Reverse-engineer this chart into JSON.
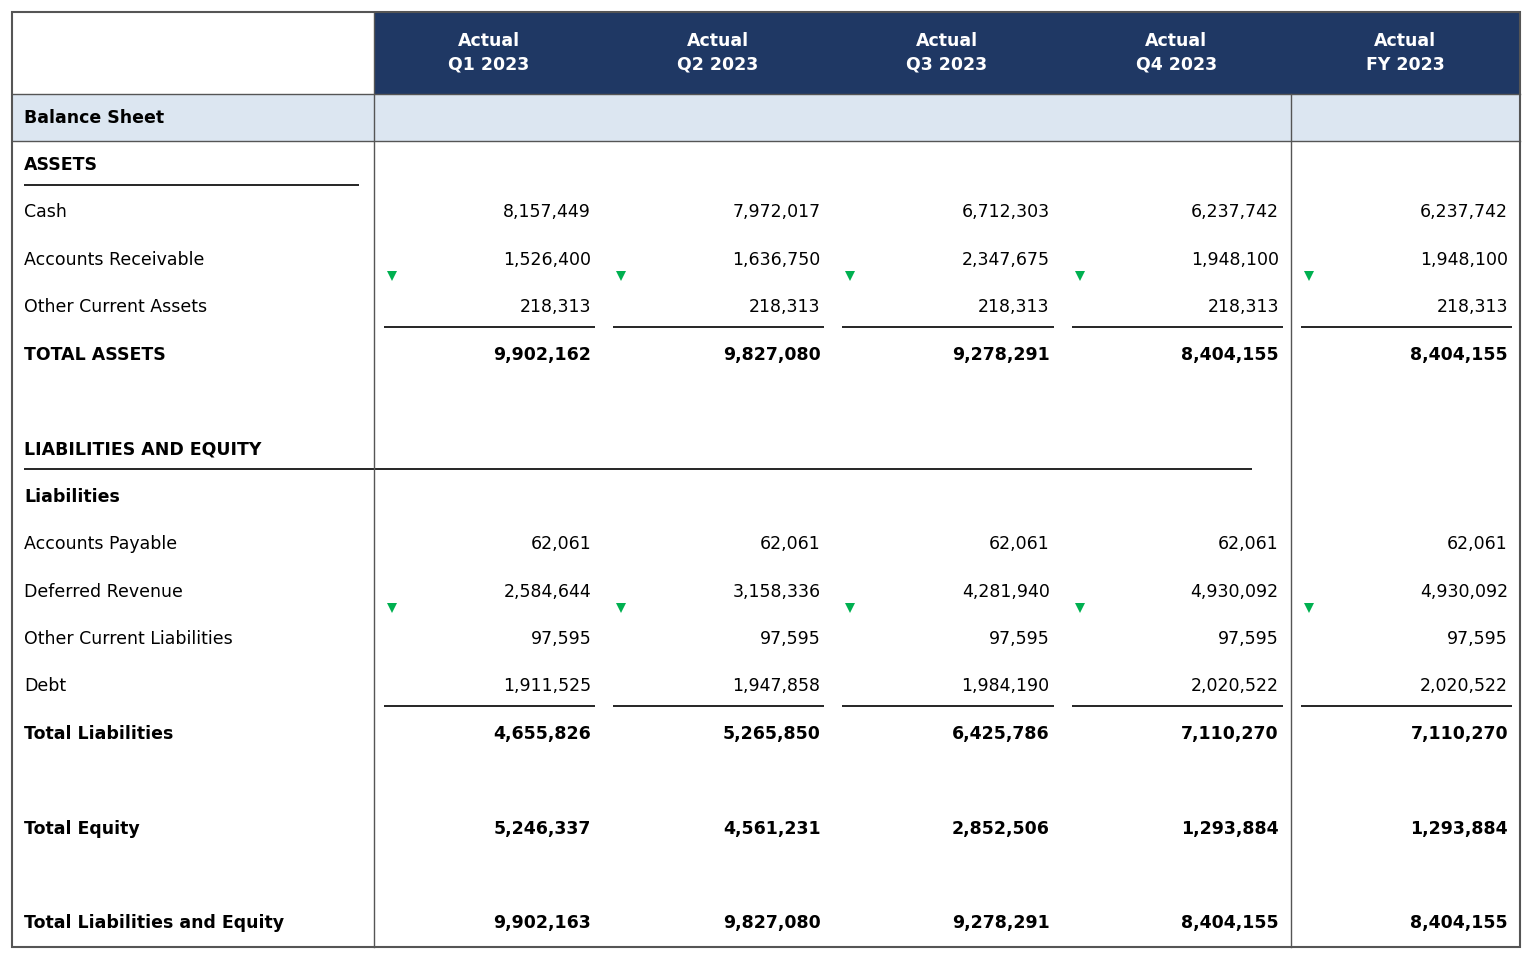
{
  "header_bg": "#1f3864",
  "header_text_color": "#ffffff",
  "balance_sheet_row_bg": "#dce6f1",
  "white_bg": "#ffffff",
  "col_headers": [
    "Actual\nQ1 2023",
    "Actual\nQ2 2023",
    "Actual\nQ3 2023",
    "Actual\nQ4 2023",
    "Actual\nFY 2023"
  ],
  "arrow_color": "#00b050",
  "underline_color": "#000000",
  "border_color": "#555555",
  "rows": [
    {
      "label": "Balance Sheet",
      "values": [
        "",
        "",
        "",
        "",
        ""
      ],
      "style": "balance_sheet"
    },
    {
      "label": "ASSETS",
      "values": [
        "",
        "",
        "",
        "",
        ""
      ],
      "style": "underline_bold"
    },
    {
      "label": "Cash",
      "values": [
        "8,157,449",
        "7,972,017",
        "6,712,303",
        "6,237,742",
        "6,237,742"
      ],
      "style": "normal"
    },
    {
      "label": "Accounts Receivable",
      "values": [
        "1,526,400",
        "1,636,750",
        "2,347,675",
        "1,948,100",
        "1,948,100"
      ],
      "style": "normal_arrow"
    },
    {
      "label": "Other Current Assets",
      "values": [
        "218,313",
        "218,313",
        "218,313",
        "218,313",
        "218,313"
      ],
      "style": "normal_underline"
    },
    {
      "label": "TOTAL ASSETS",
      "values": [
        "9,902,162",
        "9,827,080",
        "9,278,291",
        "8,404,155",
        "8,404,155"
      ],
      "style": "bold"
    },
    {
      "label": "",
      "values": [
        "",
        "",
        "",
        "",
        ""
      ],
      "style": "empty"
    },
    {
      "label": "LIABILITIES AND EQUITY",
      "values": [
        "",
        "",
        "",
        "",
        ""
      ],
      "style": "underline_bold"
    },
    {
      "label": "Liabilities",
      "values": [
        "",
        "",
        "",
        "",
        ""
      ],
      "style": "bold_plain"
    },
    {
      "label": "Accounts Payable",
      "values": [
        "62,061",
        "62,061",
        "62,061",
        "62,061",
        "62,061"
      ],
      "style": "normal"
    },
    {
      "label": "Deferred Revenue",
      "values": [
        "2,584,644",
        "3,158,336",
        "4,281,940",
        "4,930,092",
        "4,930,092"
      ],
      "style": "normal_arrow"
    },
    {
      "label": "Other Current Liabilities",
      "values": [
        "97,595",
        "97,595",
        "97,595",
        "97,595",
        "97,595"
      ],
      "style": "normal"
    },
    {
      "label": "Debt",
      "values": [
        "1,911,525",
        "1,947,858",
        "1,984,190",
        "2,020,522",
        "2,020,522"
      ],
      "style": "normal_underline"
    },
    {
      "label": "Total Liabilities",
      "values": [
        "4,655,826",
        "5,265,850",
        "6,425,786",
        "7,110,270",
        "7,110,270"
      ],
      "style": "bold"
    },
    {
      "label": "",
      "values": [
        "",
        "",
        "",
        "",
        ""
      ],
      "style": "empty"
    },
    {
      "label": "Total Equity",
      "values": [
        "5,246,337",
        "4,561,231",
        "2,852,506",
        "1,293,884",
        "1,293,884"
      ],
      "style": "bold"
    },
    {
      "label": "",
      "values": [
        "",
        "",
        "",
        "",
        ""
      ],
      "style": "empty"
    },
    {
      "label": "Total Liabilities and Equity",
      "values": [
        "9,902,163",
        "9,827,080",
        "9,278,291",
        "8,404,155",
        "8,404,155"
      ],
      "style": "bold_underline"
    }
  ]
}
